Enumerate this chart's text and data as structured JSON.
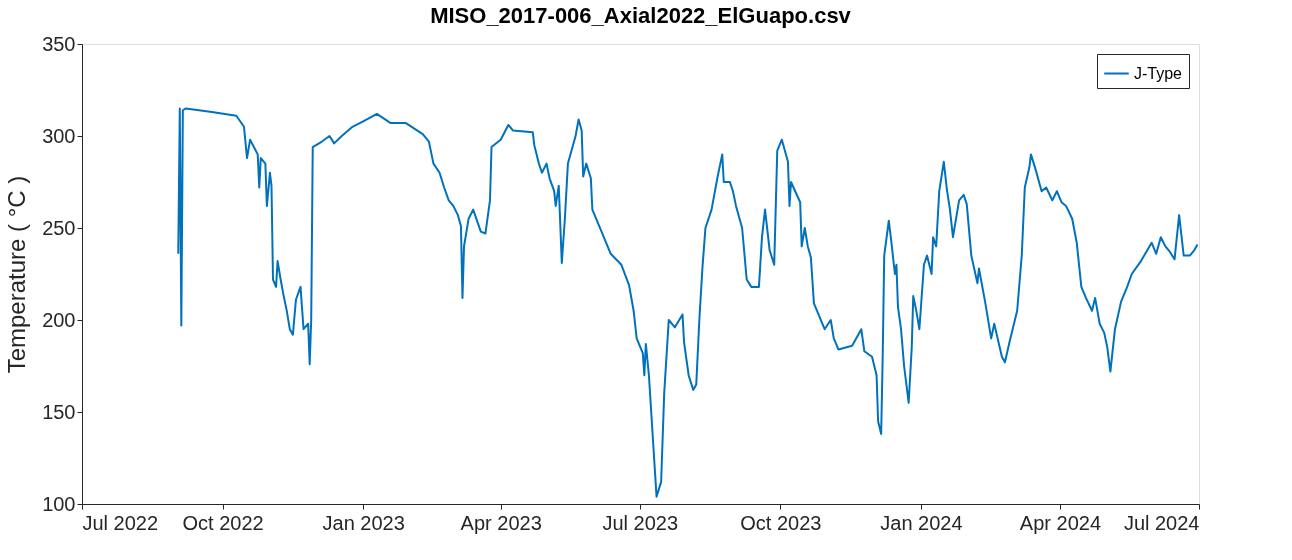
{
  "chart_data": {
    "type": "line",
    "title": "MISO_2017-006_Axial2022_ElGuapo.csv",
    "ylabel": "Temperature ( °C )",
    "xlim": [
      "2022-07-01",
      "2024-07-01"
    ],
    "ylim": [
      100,
      350
    ],
    "yticks": [
      100,
      150,
      200,
      250,
      300,
      350
    ],
    "xticks": [
      {
        "value": "2022-07-01",
        "label": "Jul 2022"
      },
      {
        "value": "2022-10-01",
        "label": "Oct 2022"
      },
      {
        "value": "2023-01-01",
        "label": "Jan 2023"
      },
      {
        "value": "2023-04-01",
        "label": "Apr 2023"
      },
      {
        "value": "2023-07-01",
        "label": "Jul 2023"
      },
      {
        "value": "2023-10-01",
        "label": "Oct 2023"
      },
      {
        "value": "2024-01-01",
        "label": "Jan 2024"
      },
      {
        "value": "2024-04-01",
        "label": "Apr 2024"
      },
      {
        "value": "2024-07-01",
        "label": "Jul 2024"
      }
    ],
    "grid": false,
    "legend": "top right",
    "line_style": "solid",
    "marker": "none",
    "x": [
      "2022-09-02",
      "2022-09-03",
      "2022-09-04",
      "2022-09-05",
      "2022-09-07",
      "2022-09-24",
      "2022-10-10",
      "2022-10-15",
      "2022-10-17",
      "2022-10-19",
      "2022-10-24",
      "2022-10-25",
      "2022-10-26",
      "2022-10-29",
      "2022-10-30",
      "2022-11-01",
      "2022-11-02",
      "2022-11-03",
      "2022-11-05",
      "2022-11-06",
      "2022-11-08",
      "2022-11-10",
      "2022-11-12",
      "2022-11-14",
      "2022-11-16",
      "2022-11-18",
      "2022-11-21",
      "2022-11-23",
      "2022-11-26",
      "2022-11-27",
      "2022-11-28",
      "2022-11-29",
      "2022-12-05",
      "2022-12-10",
      "2022-12-13",
      "2022-12-18",
      "2022-12-25",
      "2023-01-01",
      "2023-01-10",
      "2023-01-19",
      "2023-01-29",
      "2023-02-09",
      "2023-02-13",
      "2023-02-16",
      "2023-02-20",
      "2023-02-23",
      "2023-02-26",
      "2023-03-01",
      "2023-03-04",
      "2023-03-06",
      "2023-03-07",
      "2023-03-08",
      "2023-03-11",
      "2023-03-14",
      "2023-03-19",
      "2023-03-22",
      "2023-03-25",
      "2023-03-26",
      "2023-04-01",
      "2023-04-06",
      "2023-04-09",
      "2023-04-22",
      "2023-04-23",
      "2023-04-26",
      "2023-04-28",
      "2023-05-01",
      "2023-05-03",
      "2023-05-06",
      "2023-05-07",
      "2023-05-09",
      "2023-05-11",
      "2023-05-13",
      "2023-05-15",
      "2023-05-20",
      "2023-05-22",
      "2023-05-24",
      "2023-05-25",
      "2023-05-27",
      "2023-05-30",
      "2023-05-31",
      "2023-06-06",
      "2023-06-12",
      "2023-06-19",
      "2023-06-24",
      "2023-06-27",
      "2023-06-29",
      "2023-07-03",
      "2023-07-04",
      "2023-07-05",
      "2023-07-07",
      "2023-07-12",
      "2023-07-15",
      "2023-07-17",
      "2023-07-20",
      "2023-07-24",
      "2023-07-29",
      "2023-07-30",
      "2023-08-02",
      "2023-08-05",
      "2023-08-07",
      "2023-08-09",
      "2023-08-11",
      "2023-08-13",
      "2023-08-17",
      "2023-08-21",
      "2023-08-24",
      "2023-08-25",
      "2023-08-29",
      "2023-08-31",
      "2023-09-02",
      "2023-09-06",
      "2023-09-09",
      "2023-09-12",
      "2023-09-17",
      "2023-09-19",
      "2023-09-21",
      "2023-09-24",
      "2023-09-27",
      "2023-09-29",
      "2023-10-02",
      "2023-10-06",
      "2023-10-07",
      "2023-10-08",
      "2023-10-14",
      "2023-10-15",
      "2023-10-17",
      "2023-10-19",
      "2023-10-21",
      "2023-10-23",
      "2023-10-30",
      "2023-11-03",
      "2023-11-05",
      "2023-11-08",
      "2023-11-17",
      "2023-11-23",
      "2023-11-25",
      "2023-11-30",
      "2023-12-03",
      "2023-12-04",
      "2023-12-06",
      "2023-12-07",
      "2023-12-08",
      "2023-12-11",
      "2023-12-13",
      "2023-12-15",
      "2023-12-16",
      "2023-12-17",
      "2023-12-19",
      "2023-12-21",
      "2023-12-24",
      "2023-12-26",
      "2023-12-27",
      "2023-12-29",
      "2023-12-31",
      "2024-01-03",
      "2024-01-05",
      "2024-01-08",
      "2024-01-09",
      "2024-01-11",
      "2024-01-13",
      "2024-01-16",
      "2024-01-18",
      "2024-01-20",
      "2024-01-22",
      "2024-01-26",
      "2024-01-29",
      "2024-01-31",
      "2024-02-03",
      "2024-02-07",
      "2024-02-08",
      "2024-02-12",
      "2024-02-16",
      "2024-02-18",
      "2024-02-23",
      "2024-02-25",
      "2024-02-28",
      "2024-03-04",
      "2024-03-07",
      "2024-03-09",
      "2024-03-12",
      "2024-03-13",
      "2024-03-16",
      "2024-03-20",
      "2024-03-23",
      "2024-03-27",
      "2024-03-30",
      "2024-04-02",
      "2024-04-05",
      "2024-04-09",
      "2024-04-12",
      "2024-04-15",
      "2024-04-18",
      "2024-04-22",
      "2024-04-24",
      "2024-04-27",
      "2024-04-30",
      "2024-05-02",
      "2024-05-04",
      "2024-05-07",
      "2024-05-11",
      "2024-05-15",
      "2024-05-18",
      "2024-05-24",
      "2024-05-31",
      "2024-06-03",
      "2024-06-06",
      "2024-06-09",
      "2024-06-12",
      "2024-06-15",
      "2024-06-18",
      "2024-06-21",
      "2024-06-25",
      "2024-06-28",
      "2024-06-30"
    ],
    "series": [
      {
        "name": "J-Type",
        "color": "#0072bd",
        "values": [
          236,
          315,
          197,
          314,
          315,
          313,
          311,
          305,
          288,
          298,
          290,
          272,
          288,
          285,
          262,
          280,
          273,
          222,
          218,
          232,
          222,
          213,
          205,
          195,
          192,
          211,
          218,
          195,
          198,
          176,
          200,
          294,
          297,
          300,
          296,
          300,
          305,
          308,
          312,
          307,
          307,
          301,
          297,
          285,
          280,
          272,
          265,
          262,
          257,
          251,
          212,
          240,
          255,
          260,
          248,
          247,
          265,
          294,
          298,
          306,
          303,
          302,
          295,
          285,
          280,
          285,
          277,
          270,
          262,
          273,
          231,
          255,
          285,
          300,
          309,
          303,
          278,
          285,
          277,
          260,
          248,
          236,
          230,
          219,
          205,
          190,
          182,
          170,
          187,
          170,
          104,
          112,
          160,
          200,
          196,
          203,
          188,
          170,
          162,
          165,
          200,
          228,
          250,
          260,
          278,
          290,
          275,
          275,
          270,
          262,
          250,
          222,
          218,
          218,
          245,
          260,
          238,
          230,
          292,
          298,
          286,
          262,
          275,
          264,
          240,
          250,
          240,
          234,
          209,
          195,
          200,
          190,
          184,
          186,
          195,
          183,
          180,
          170,
          145,
          138,
          180,
          235,
          254,
          240,
          225,
          230,
          207,
          195,
          175,
          155,
          185,
          213,
          205,
          195,
          230,
          235,
          225,
          245,
          240,
          270,
          286,
          271,
          260,
          245,
          265,
          268,
          263,
          235,
          220,
          228,
          210,
          190,
          198,
          180,
          177,
          188,
          205,
          235,
          272,
          283,
          290,
          282,
          270,
          272,
          265,
          270,
          264,
          262,
          255,
          242,
          218,
          212,
          205,
          212,
          198,
          193,
          185,
          172,
          195,
          210,
          218,
          225,
          232,
          242,
          236,
          245,
          240,
          237,
          233,
          257,
          235,
          235,
          238,
          241
        ]
      }
    ]
  }
}
